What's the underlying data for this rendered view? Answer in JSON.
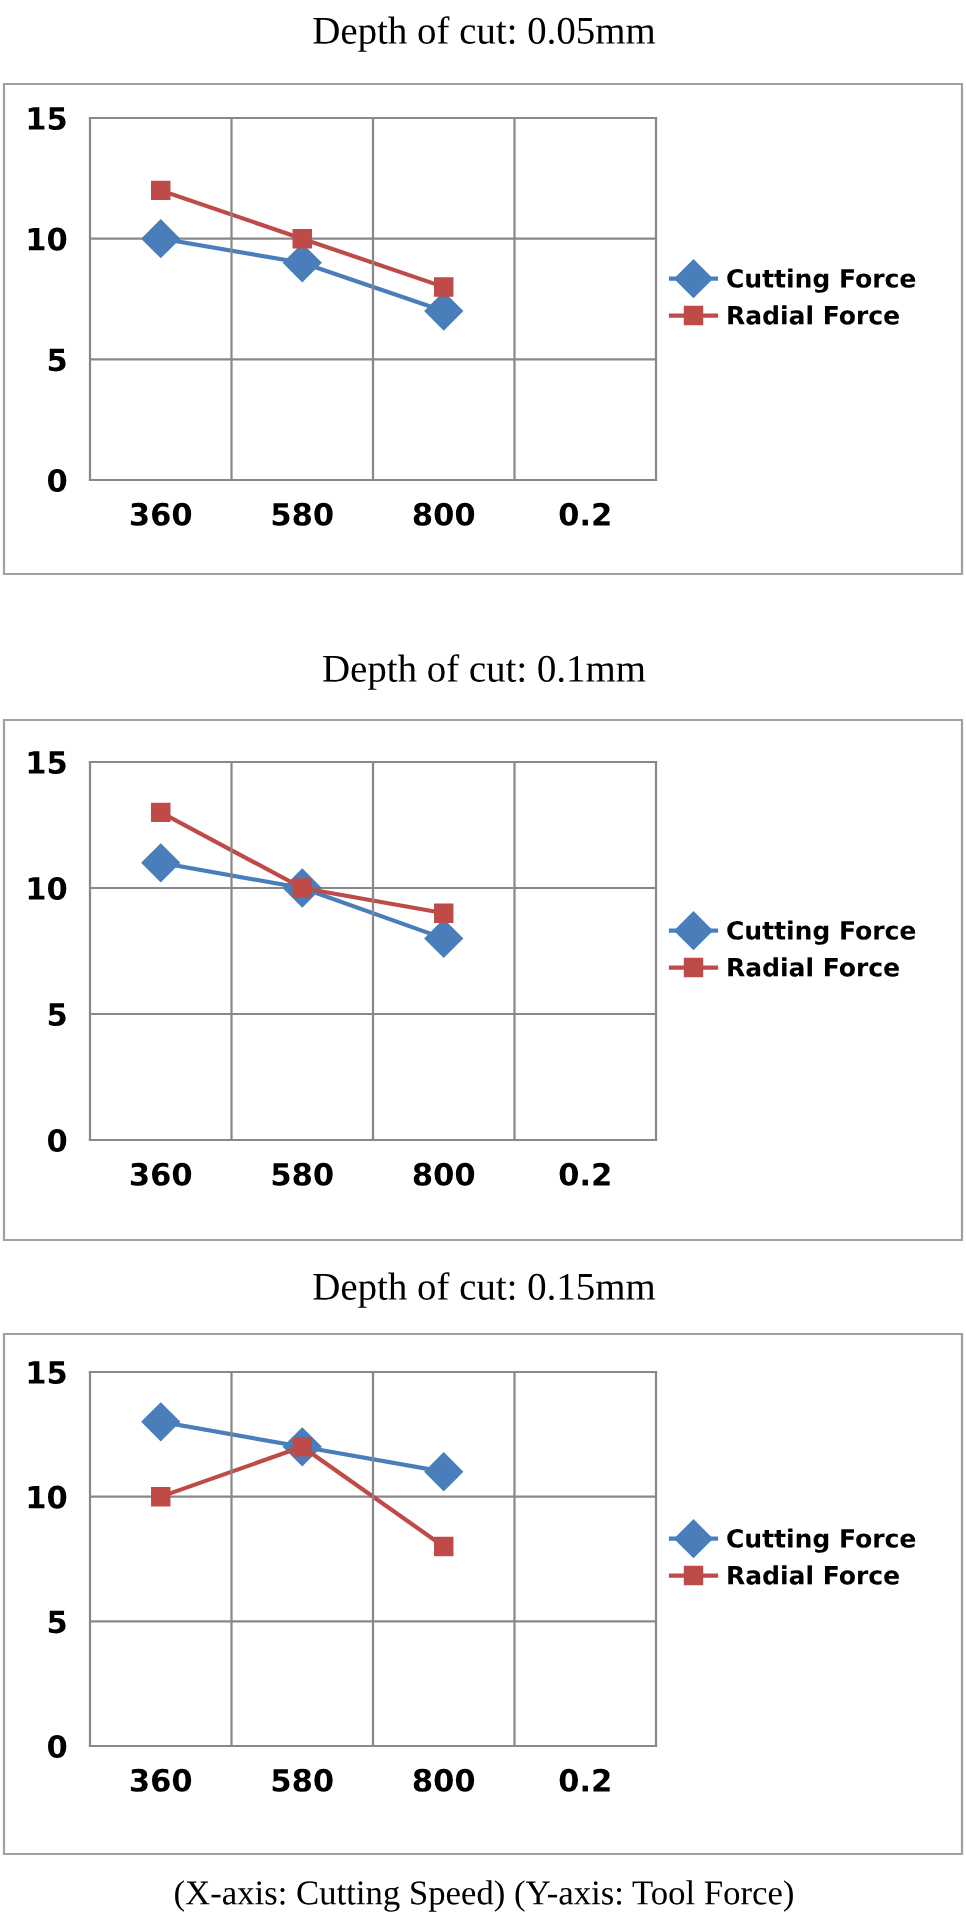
{
  "chart_data": [
    {
      "type": "line",
      "title": "Depth of cut: 0.05mm",
      "categories": [
        "360",
        "580",
        "800",
        "0.2"
      ],
      "ylim": [
        0,
        15
      ],
      "yticks": [
        0,
        5,
        10,
        15
      ],
      "grid": true,
      "legend": "right",
      "series": [
        {
          "name": "Cutting Force",
          "color": "#4a7ebb",
          "marker": "diamond",
          "values": [
            10,
            9,
            7,
            null
          ]
        },
        {
          "name": "Radial Force",
          "color": "#be4b48",
          "marker": "square",
          "values": [
            12,
            10,
            8,
            null
          ]
        }
      ]
    },
    {
      "type": "line",
      "title": "Depth of cut: 0.1mm",
      "categories": [
        "360",
        "580",
        "800",
        "0.2"
      ],
      "ylim": [
        0,
        15
      ],
      "yticks": [
        0,
        5,
        10,
        15
      ],
      "grid": true,
      "legend": "right",
      "series": [
        {
          "name": "Cutting Force",
          "color": "#4a7ebb",
          "marker": "diamond",
          "values": [
            11,
            10,
            8,
            null
          ]
        },
        {
          "name": "Radial Force",
          "color": "#be4b48",
          "marker": "square",
          "values": [
            13,
            10,
            9,
            null
          ]
        }
      ]
    },
    {
      "type": "line",
      "title": "Depth of cut: 0.15mm",
      "categories": [
        "360",
        "580",
        "800",
        "0.2"
      ],
      "ylim": [
        0,
        15
      ],
      "yticks": [
        0,
        5,
        10,
        15
      ],
      "grid": true,
      "legend": "right",
      "annotations": [
        "(X-axis: Cutting Speed) (Y-axis: Tool Force)"
      ],
      "series": [
        {
          "name": "Cutting Force",
          "color": "#4a7ebb",
          "marker": "diamond",
          "values": [
            13,
            12,
            11,
            null
          ]
        },
        {
          "name": "Radial Force",
          "color": "#be4b48",
          "marker": "square",
          "values": [
            10,
            12,
            8,
            null
          ]
        }
      ]
    }
  ]
}
